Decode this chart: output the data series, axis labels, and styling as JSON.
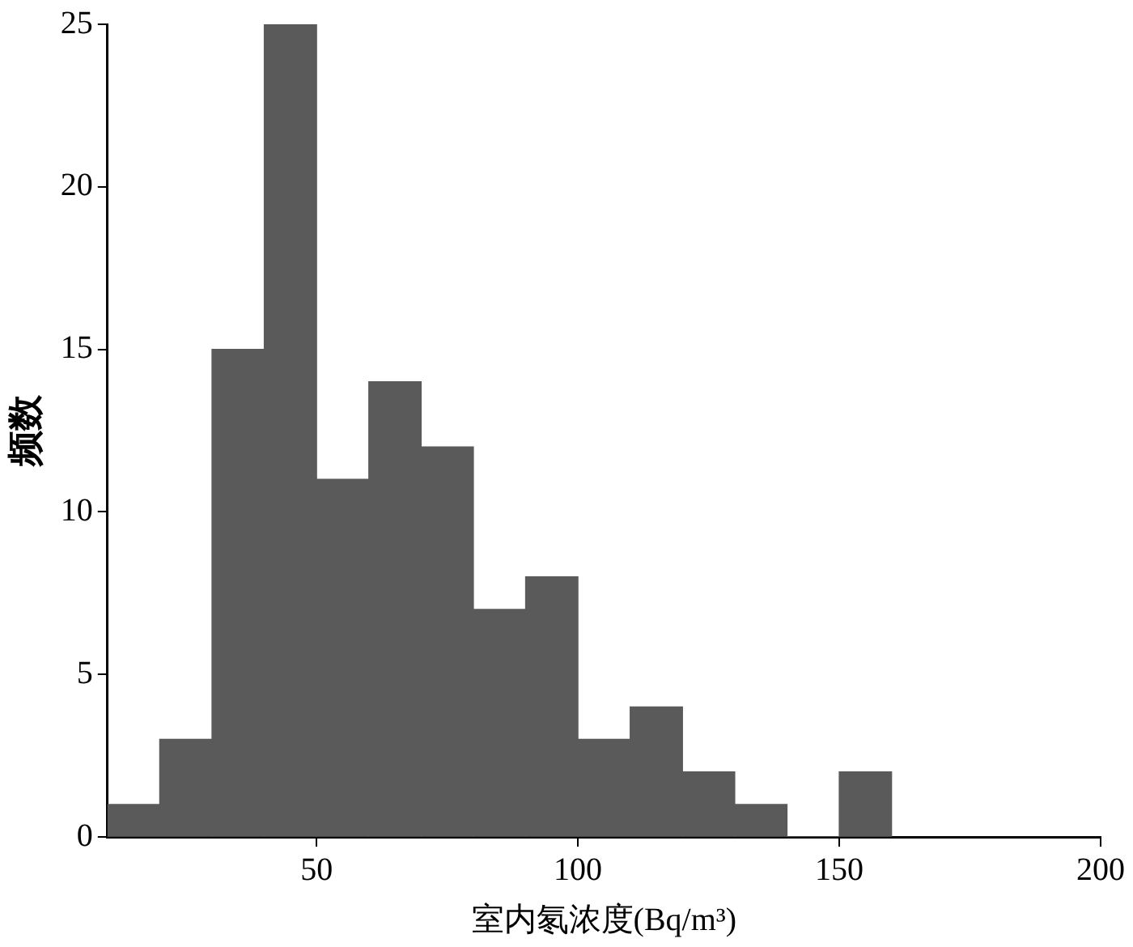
{
  "chart_data": {
    "type": "histogram",
    "xlabel": "室内氡浓度(Bq/m³)",
    "ylabel": "频数",
    "bins": [
      10,
      20,
      30,
      40,
      50,
      60,
      70,
      80,
      90,
      100,
      110,
      120,
      130,
      140,
      150,
      160
    ],
    "values": [
      1,
      3,
      15,
      25,
      11,
      14,
      12,
      7,
      8,
      3,
      4,
      2,
      1,
      0,
      2
    ],
    "color": "#5a5a5a",
    "xlim": [
      10,
      200
    ],
    "xticks": [
      50,
      100,
      150,
      200
    ],
    "ylim": [
      0,
      25
    ],
    "yticks": [
      0,
      5,
      10,
      15,
      20,
      25
    ],
    "grid": false,
    "legend": false
  }
}
